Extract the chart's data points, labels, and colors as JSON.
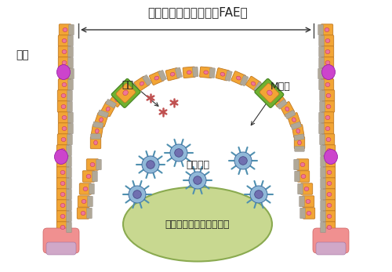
{
  "bg_color": "#ffffff",
  "title_text": "濾胞随伴上皮細胞層（FAE）",
  "title_fontsize": 11,
  "label_villus": "絨毛",
  "label_antigen": "抗原",
  "label_mcell": "M細胞",
  "label_dendritic": "樹状細胞",
  "label_peyer": "パイエル板のリンパ濾胞",
  "cell_orange": "#F2A535",
  "cell_pink": "#EE7799",
  "cell_magenta": "#CC44CC",
  "cell_gray": "#B0A898",
  "cell_green": "#7AB830",
  "ellipse_green": "#C8D890",
  "arrow_color": "#333333",
  "line_color": "#444444",
  "text_color": "#222222",
  "antigen_color": "#C05050",
  "dc_body": "#90B8D8",
  "dc_nucleus": "#7070B0",
  "dc_spike": "#5090B0"
}
